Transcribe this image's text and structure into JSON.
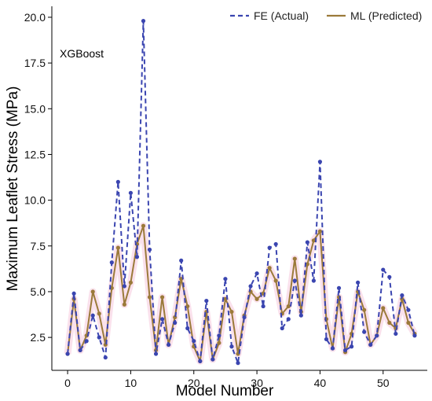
{
  "chart_data": {
    "type": "line",
    "title": "",
    "annotation": "XGBoost",
    "xlabel": "Model Number",
    "ylabel": "Maximum Leaflet Stress (MPa)",
    "xlim": [
      -2.5,
      57
    ],
    "ylim": [
      0.7,
      20.6
    ],
    "xticks": [
      0,
      10,
      20,
      30,
      40,
      50
    ],
    "yticks": [
      2.5,
      5.0,
      7.5,
      10.0,
      12.5,
      15.0,
      17.5,
      20.0
    ],
    "ytick_labels": [
      "2.5",
      "5.0",
      "7.5",
      "10.0",
      "12.5",
      "15.0",
      "17.5",
      "20.0"
    ],
    "grid": false,
    "legend_position": "top-right",
    "x": [
      0,
      1,
      2,
      3,
      4,
      5,
      6,
      7,
      8,
      9,
      10,
      11,
      12,
      13,
      14,
      15,
      16,
      17,
      18,
      19,
      20,
      21,
      22,
      23,
      24,
      25,
      26,
      27,
      28,
      29,
      30,
      31,
      32,
      33,
      34,
      35,
      36,
      37,
      38,
      39,
      40,
      41,
      42,
      43,
      44,
      45,
      46,
      47,
      48,
      49,
      50,
      51,
      52,
      53,
      54,
      55
    ],
    "series": [
      {
        "name": "FE (Actual)",
        "color": "#3a45b0",
        "style": "dashed",
        "values": [
          1.6,
          4.9,
          1.8,
          2.3,
          3.7,
          2.5,
          1.4,
          6.6,
          11.0,
          5.3,
          10.4,
          6.9,
          19.8,
          7.3,
          1.6,
          3.5,
          2.1,
          3.3,
          6.7,
          3.0,
          2.3,
          1.2,
          4.5,
          1.3,
          2.6,
          5.7,
          2.0,
          1.1,
          3.6,
          5.3,
          6.0,
          4.2,
          7.4,
          7.6,
          3.0,
          3.5,
          5.6,
          3.7,
          7.7,
          5.6,
          12.1,
          2.4,
          1.9,
          5.2,
          1.8,
          2.0,
          5.5,
          2.8,
          2.1,
          2.6,
          6.2,
          5.8,
          2.7,
          4.8,
          4.0,
          2.6
        ],
        "markers": true
      },
      {
        "name": "ML (Predicted)",
        "color": "#9b7a3a",
        "style": "solid",
        "values": [
          1.6,
          4.6,
          1.8,
          2.6,
          5.0,
          3.8,
          2.1,
          5.2,
          7.4,
          4.3,
          5.5,
          7.6,
          8.6,
          4.7,
          1.8,
          4.7,
          2.1,
          3.6,
          5.7,
          4.2,
          2.0,
          1.2,
          3.9,
          1.3,
          2.2,
          4.6,
          3.9,
          1.6,
          3.7,
          5.0,
          4.6,
          4.9,
          6.3,
          5.6,
          3.8,
          4.2,
          6.8,
          3.9,
          6.5,
          7.8,
          8.3,
          3.5,
          1.9,
          4.7,
          1.7,
          2.7,
          5.0,
          4.0,
          2.1,
          2.6,
          4.1,
          3.3,
          3.0,
          4.6,
          3.3,
          2.7
        ],
        "markers": true
      }
    ]
  }
}
